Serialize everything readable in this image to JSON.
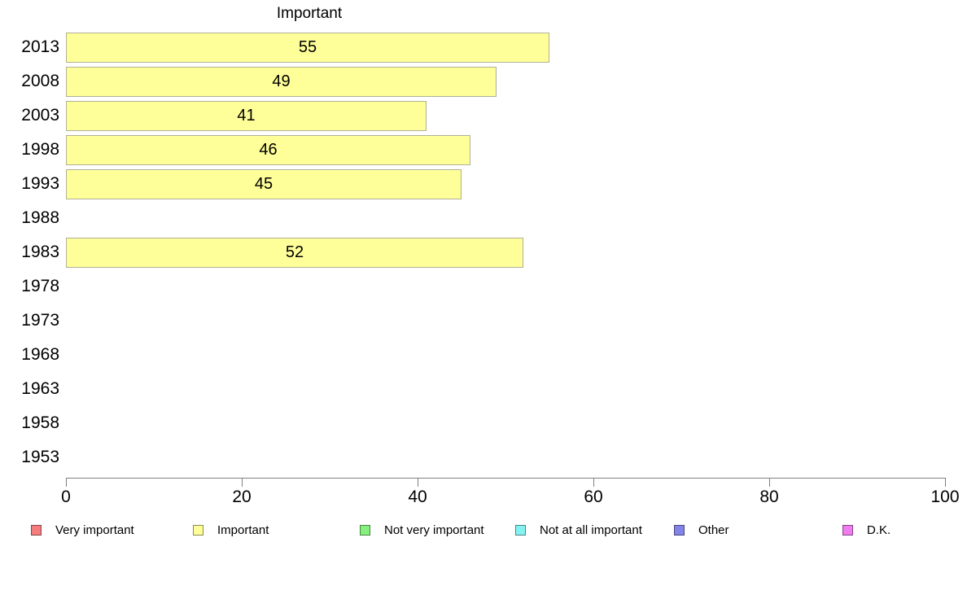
{
  "chart_data": {
    "type": "bar",
    "orientation": "horizontal",
    "title": "Important",
    "categories": [
      "2013",
      "2008",
      "2003",
      "1998",
      "1993",
      "1988",
      "1983",
      "1978",
      "1973",
      "1968",
      "1963",
      "1958",
      "1953"
    ],
    "values": [
      55,
      49,
      41,
      46,
      45,
      null,
      52,
      null,
      null,
      null,
      null,
      null,
      null
    ],
    "xlim": [
      0,
      100
    ],
    "x_ticks": [
      "0",
      "20",
      "40",
      "60",
      "80",
      "100"
    ],
    "grid": false,
    "bar_fill_color": "#FFFF99",
    "bar_border_color": "#B0B096",
    "axis_color": "#808080",
    "legend_position": "bottom",
    "legend": [
      {
        "label": "Very important",
        "color": "#F47E7E"
      },
      {
        "label": "Important",
        "color": "#FFFF99"
      },
      {
        "label": "Not very important",
        "color": "#86F07E"
      },
      {
        "label": "Not at all important",
        "color": "#85F2F2"
      },
      {
        "label": "Other",
        "color": "#8383E8"
      },
      {
        "label": "D.K.",
        "color": "#F07CF0"
      }
    ]
  }
}
